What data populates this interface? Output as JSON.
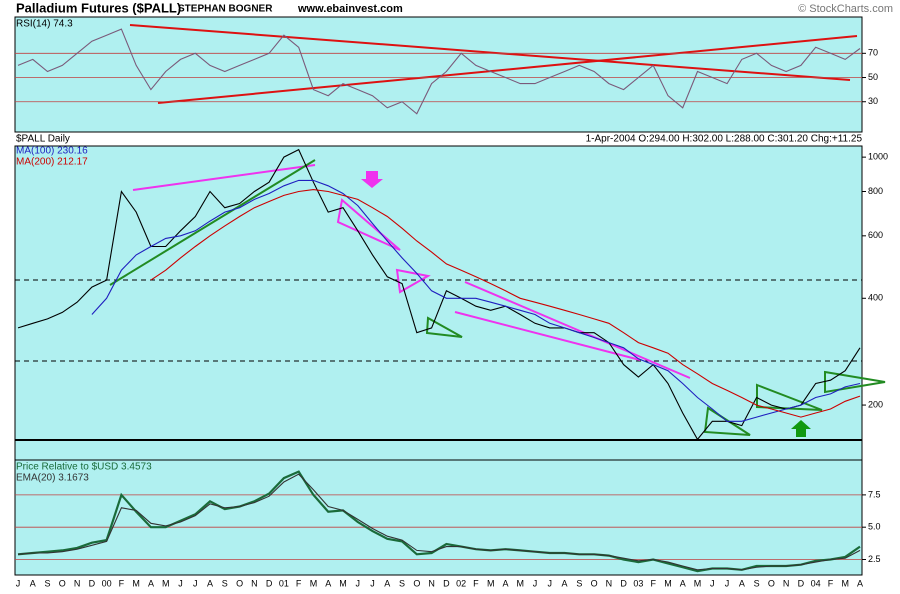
{
  "header": {
    "title": "Palladium Futures ($PALL)",
    "author": "STEPHAN BOGNER",
    "website": "www.ebainvest.com",
    "copyright": "© StockCharts.com"
  },
  "chart_data": [
    {
      "type": "line",
      "ylim": [
        5,
        100
      ],
      "yticks": [
        30,
        50,
        70
      ],
      "grid": true,
      "series": [
        {
          "name": "RSI(14) 74.3",
          "color": "#7a5a7a",
          "values": [
            60,
            65,
            55,
            60,
            70,
            80,
            85,
            90,
            60,
            40,
            55,
            65,
            70,
            60,
            55,
            60,
            65,
            70,
            85,
            75,
            40,
            35,
            45,
            40,
            35,
            25,
            30,
            20,
            45,
            55,
            70,
            60,
            55,
            50,
            45,
            45,
            50,
            55,
            60,
            55,
            45,
            40,
            50,
            60,
            35,
            25,
            55,
            50,
            45,
            65,
            70,
            60,
            55,
            60,
            75,
            70,
            65,
            74
          ]
        }
      ]
    },
    {
      "type": "line",
      "title": "$PALL Daily",
      "annotation": "1-Apr-2004 O:294.00 H:302.00 L:288.00 C:301.20 Chg:+11.25",
      "log_scale": true,
      "ylim": [
        140,
        1075
      ],
      "yticks": [
        200,
        400,
        600,
        800,
        1000
      ],
      "grid": false,
      "series": [
        {
          "color": "#000000",
          "values": [
            330,
            340,
            350,
            365,
            390,
            430,
            450,
            800,
            700,
            560,
            560,
            620,
            680,
            800,
            720,
            740,
            800,
            850,
            1000,
            1050,
            850,
            700,
            720,
            620,
            530,
            460,
            440,
            320,
            330,
            420,
            400,
            380,
            370,
            380,
            360,
            340,
            330,
            330,
            320,
            320,
            300,
            260,
            240,
            260,
            230,
            190,
            160,
            180,
            180,
            175,
            210,
            200,
            195,
            200,
            230,
            235,
            250,
            290
          ]
        },
        {
          "name": "MA(100) 230.16",
          "color": "#1f1fbf",
          "values": [
            null,
            null,
            null,
            null,
            null,
            360,
            400,
            480,
            530,
            560,
            590,
            600,
            620,
            660,
            700,
            720,
            760,
            790,
            830,
            860,
            860,
            830,
            790,
            730,
            650,
            580,
            520,
            470,
            420,
            400,
            400,
            400,
            390,
            380,
            370,
            360,
            340,
            330,
            320,
            310,
            300,
            290,
            270,
            260,
            250,
            230,
            210,
            195,
            180,
            180,
            185,
            190,
            195,
            200,
            210,
            215,
            225,
            230
          ]
        },
        {
          "name": "MA(200) 212.17",
          "color": "#cc0000",
          "values": [
            null,
            null,
            null,
            null,
            null,
            null,
            null,
            null,
            null,
            450,
            480,
            520,
            560,
            600,
            640,
            680,
            720,
            750,
            780,
            800,
            810,
            800,
            780,
            760,
            720,
            680,
            630,
            580,
            540,
            500,
            480,
            460,
            440,
            420,
            400,
            390,
            380,
            370,
            360,
            350,
            340,
            320,
            300,
            290,
            280,
            260,
            245,
            230,
            220,
            210,
            200,
            195,
            190,
            185,
            190,
            195,
            205,
            212
          ]
        }
      ]
    },
    {
      "type": "line",
      "ylim": [
        1.3,
        10.2
      ],
      "yticks": [
        2.5,
        {
          "value": 5,
          "label": "5.0"
        },
        7.5
      ],
      "grid": true,
      "categories": [
        "J",
        "A",
        "S",
        "O",
        "N",
        "D",
        "00",
        "F",
        "M",
        "A",
        "M",
        "J",
        "J",
        "A",
        "S",
        "O",
        "N",
        "D",
        "01",
        "F",
        "M",
        "A",
        "M",
        "J",
        "J",
        "A",
        "S",
        "O",
        "N",
        "D",
        "02",
        "F",
        "M",
        "A",
        "M",
        "J",
        "J",
        "A",
        "S",
        "O",
        "N",
        "D",
        "03",
        "F",
        "M",
        "A",
        "M",
        "J",
        "J",
        "A",
        "S",
        "O",
        "N",
        "D",
        "04",
        "F",
        "M",
        "A"
      ],
      "series": [
        {
          "name": "Price Relative to $USD 3.4573",
          "color": "#1a6b3a",
          "values": [
            2.9,
            3.0,
            3.1,
            3.2,
            3.4,
            3.8,
            4.0,
            7.5,
            6.2,
            5.0,
            5.0,
            5.5,
            6.0,
            7.0,
            6.4,
            6.6,
            7.0,
            7.6,
            8.8,
            9.3,
            7.5,
            6.2,
            6.3,
            5.4,
            4.7,
            4.1,
            3.9,
            2.9,
            3.0,
            3.7,
            3.5,
            3.3,
            3.2,
            3.3,
            3.2,
            3.1,
            3.0,
            3.0,
            2.9,
            2.9,
            2.8,
            2.5,
            2.3,
            2.5,
            2.2,
            1.9,
            1.6,
            1.8,
            1.8,
            1.7,
            2.0,
            2.0,
            2.0,
            2.1,
            2.4,
            2.5,
            2.7,
            3.5
          ]
        },
        {
          "name": "EMA(20) 3.1673",
          "color": "#333333",
          "values": [
            2.9,
            3.0,
            3.0,
            3.1,
            3.3,
            3.6,
            3.9,
            6.5,
            6.3,
            5.3,
            5.1,
            5.4,
            5.9,
            6.8,
            6.5,
            6.6,
            6.9,
            7.4,
            8.5,
            9.1,
            7.9,
            6.6,
            6.3,
            5.6,
            4.9,
            4.3,
            4.0,
            3.2,
            3.1,
            3.5,
            3.5,
            3.3,
            3.2,
            3.3,
            3.2,
            3.1,
            3.0,
            3.0,
            2.9,
            2.9,
            2.8,
            2.6,
            2.4,
            2.5,
            2.3,
            2.0,
            1.7,
            1.8,
            1.8,
            1.7,
            1.9,
            2.0,
            2.0,
            2.1,
            2.3,
            2.5,
            2.6,
            3.2
          ]
        }
      ]
    }
  ]
}
